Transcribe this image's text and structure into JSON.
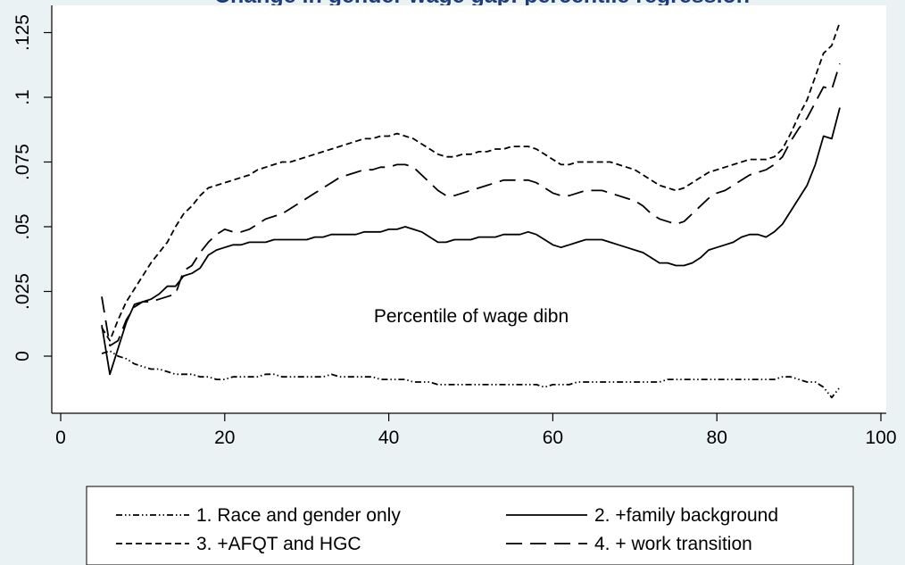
{
  "chart_data": {
    "type": "line",
    "title": "Change in gender wage gap: percentile regression",
    "xlabel": "Percentile of wage dibn",
    "ylabel": "",
    "xlim": [
      0,
      100
    ],
    "ylim": [
      -0.022,
      0.135
    ],
    "xticks": [
      0,
      20,
      40,
      60,
      80,
      100
    ],
    "yticks": [
      0,
      0.025,
      0.05,
      0.075,
      0.1,
      0.125
    ],
    "xtick_labels": [
      "0",
      "20",
      "40",
      "60",
      "80",
      "100"
    ],
    "ytick_labels": [
      "0",
      ".025",
      ".05",
      ".075",
      ".1",
      ".125"
    ],
    "grid": false,
    "legend_position": "bottom",
    "x": [
      5,
      6,
      7,
      8,
      9,
      10,
      11,
      12,
      13,
      14,
      15,
      16,
      17,
      18,
      19,
      20,
      21,
      22,
      23,
      24,
      25,
      26,
      27,
      28,
      29,
      30,
      31,
      32,
      33,
      34,
      35,
      36,
      37,
      38,
      39,
      40,
      41,
      42,
      43,
      44,
      45,
      46,
      47,
      48,
      49,
      50,
      51,
      52,
      53,
      54,
      55,
      56,
      57,
      58,
      59,
      60,
      61,
      62,
      63,
      64,
      65,
      66,
      67,
      68,
      69,
      70,
      71,
      72,
      73,
      74,
      75,
      76,
      77,
      78,
      79,
      80,
      81,
      82,
      83,
      84,
      85,
      86,
      87,
      88,
      89,
      90,
      91,
      92,
      93,
      94,
      95
    ],
    "series": [
      {
        "name": "1. Race and gender only",
        "style": "dash-dot-dot",
        "values": [
          0.001,
          0.002,
          0.0,
          -0.001,
          -0.003,
          -0.004,
          -0.005,
          -0.005,
          -0.006,
          -0.007,
          -0.007,
          -0.007,
          -0.008,
          -0.008,
          -0.009,
          -0.009,
          -0.008,
          -0.008,
          -0.008,
          -0.008,
          -0.007,
          -0.007,
          -0.008,
          -0.008,
          -0.008,
          -0.008,
          -0.008,
          -0.008,
          -0.007,
          -0.008,
          -0.008,
          -0.008,
          -0.008,
          -0.008,
          -0.009,
          -0.009,
          -0.009,
          -0.009,
          -0.01,
          -0.01,
          -0.01,
          -0.011,
          -0.011,
          -0.011,
          -0.011,
          -0.011,
          -0.011,
          -0.011,
          -0.011,
          -0.011,
          -0.011,
          -0.011,
          -0.011,
          -0.011,
          -0.012,
          -0.011,
          -0.011,
          -0.011,
          -0.01,
          -0.01,
          -0.01,
          -0.01,
          -0.01,
          -0.01,
          -0.01,
          -0.01,
          -0.01,
          -0.01,
          -0.01,
          -0.009,
          -0.009,
          -0.009,
          -0.009,
          -0.009,
          -0.009,
          -0.009,
          -0.009,
          -0.009,
          -0.009,
          -0.009,
          -0.009,
          -0.009,
          -0.009,
          -0.008,
          -0.008,
          -0.009,
          -0.01,
          -0.01,
          -0.012,
          -0.016,
          -0.012
        ]
      },
      {
        "name": "2. +family background",
        "style": "solid",
        "values": [
          0.012,
          -0.007,
          0.003,
          0.013,
          0.02,
          0.021,
          0.022,
          0.024,
          0.027,
          0.027,
          0.031,
          0.032,
          0.034,
          0.039,
          0.041,
          0.042,
          0.043,
          0.043,
          0.044,
          0.044,
          0.044,
          0.045,
          0.045,
          0.045,
          0.045,
          0.045,
          0.046,
          0.046,
          0.047,
          0.047,
          0.047,
          0.047,
          0.048,
          0.048,
          0.048,
          0.049,
          0.049,
          0.05,
          0.049,
          0.048,
          0.046,
          0.044,
          0.044,
          0.045,
          0.045,
          0.045,
          0.046,
          0.046,
          0.046,
          0.047,
          0.047,
          0.047,
          0.048,
          0.047,
          0.045,
          0.043,
          0.042,
          0.043,
          0.044,
          0.045,
          0.045,
          0.045,
          0.044,
          0.043,
          0.042,
          0.041,
          0.04,
          0.038,
          0.036,
          0.036,
          0.035,
          0.035,
          0.036,
          0.038,
          0.041,
          0.042,
          0.043,
          0.044,
          0.046,
          0.047,
          0.047,
          0.046,
          0.048,
          0.051,
          0.056,
          0.061,
          0.066,
          0.074,
          0.085,
          0.084,
          0.096
        ]
      },
      {
        "name": "3. +AFQT and HGC",
        "style": "short-dash",
        "values": [
          0.011,
          0.006,
          0.014,
          0.021,
          0.026,
          0.031,
          0.036,
          0.04,
          0.044,
          0.05,
          0.055,
          0.058,
          0.062,
          0.065,
          0.066,
          0.067,
          0.068,
          0.069,
          0.07,
          0.072,
          0.073,
          0.074,
          0.075,
          0.075,
          0.076,
          0.077,
          0.078,
          0.079,
          0.08,
          0.081,
          0.082,
          0.083,
          0.084,
          0.084,
          0.085,
          0.085,
          0.086,
          0.085,
          0.084,
          0.082,
          0.08,
          0.078,
          0.077,
          0.077,
          0.078,
          0.078,
          0.079,
          0.079,
          0.08,
          0.08,
          0.081,
          0.081,
          0.081,
          0.08,
          0.078,
          0.076,
          0.074,
          0.074,
          0.075,
          0.075,
          0.075,
          0.075,
          0.075,
          0.074,
          0.073,
          0.072,
          0.07,
          0.068,
          0.066,
          0.065,
          0.064,
          0.065,
          0.067,
          0.069,
          0.071,
          0.072,
          0.073,
          0.074,
          0.075,
          0.076,
          0.076,
          0.076,
          0.077,
          0.08,
          0.086,
          0.093,
          0.099,
          0.108,
          0.117,
          0.12,
          0.129
        ]
      },
      {
        "name": "4. + work transition",
        "style": "long-dash",
        "values": [
          0.023,
          0.004,
          0.006,
          0.014,
          0.019,
          0.021,
          0.021,
          0.022,
          0.023,
          0.024,
          0.033,
          0.035,
          0.04,
          0.044,
          0.047,
          0.049,
          0.048,
          0.048,
          0.049,
          0.051,
          0.053,
          0.054,
          0.055,
          0.057,
          0.059,
          0.061,
          0.063,
          0.065,
          0.067,
          0.069,
          0.07,
          0.071,
          0.072,
          0.072,
          0.073,
          0.073,
          0.074,
          0.074,
          0.073,
          0.07,
          0.067,
          0.064,
          0.062,
          0.062,
          0.063,
          0.064,
          0.065,
          0.066,
          0.067,
          0.068,
          0.068,
          0.068,
          0.068,
          0.067,
          0.065,
          0.063,
          0.062,
          0.062,
          0.063,
          0.064,
          0.064,
          0.064,
          0.063,
          0.062,
          0.061,
          0.06,
          0.058,
          0.055,
          0.053,
          0.052,
          0.051,
          0.052,
          0.055,
          0.058,
          0.061,
          0.063,
          0.064,
          0.066,
          0.068,
          0.07,
          0.071,
          0.072,
          0.074,
          0.077,
          0.083,
          0.088,
          0.092,
          0.098,
          0.104,
          0.103,
          0.113
        ]
      }
    ]
  }
}
